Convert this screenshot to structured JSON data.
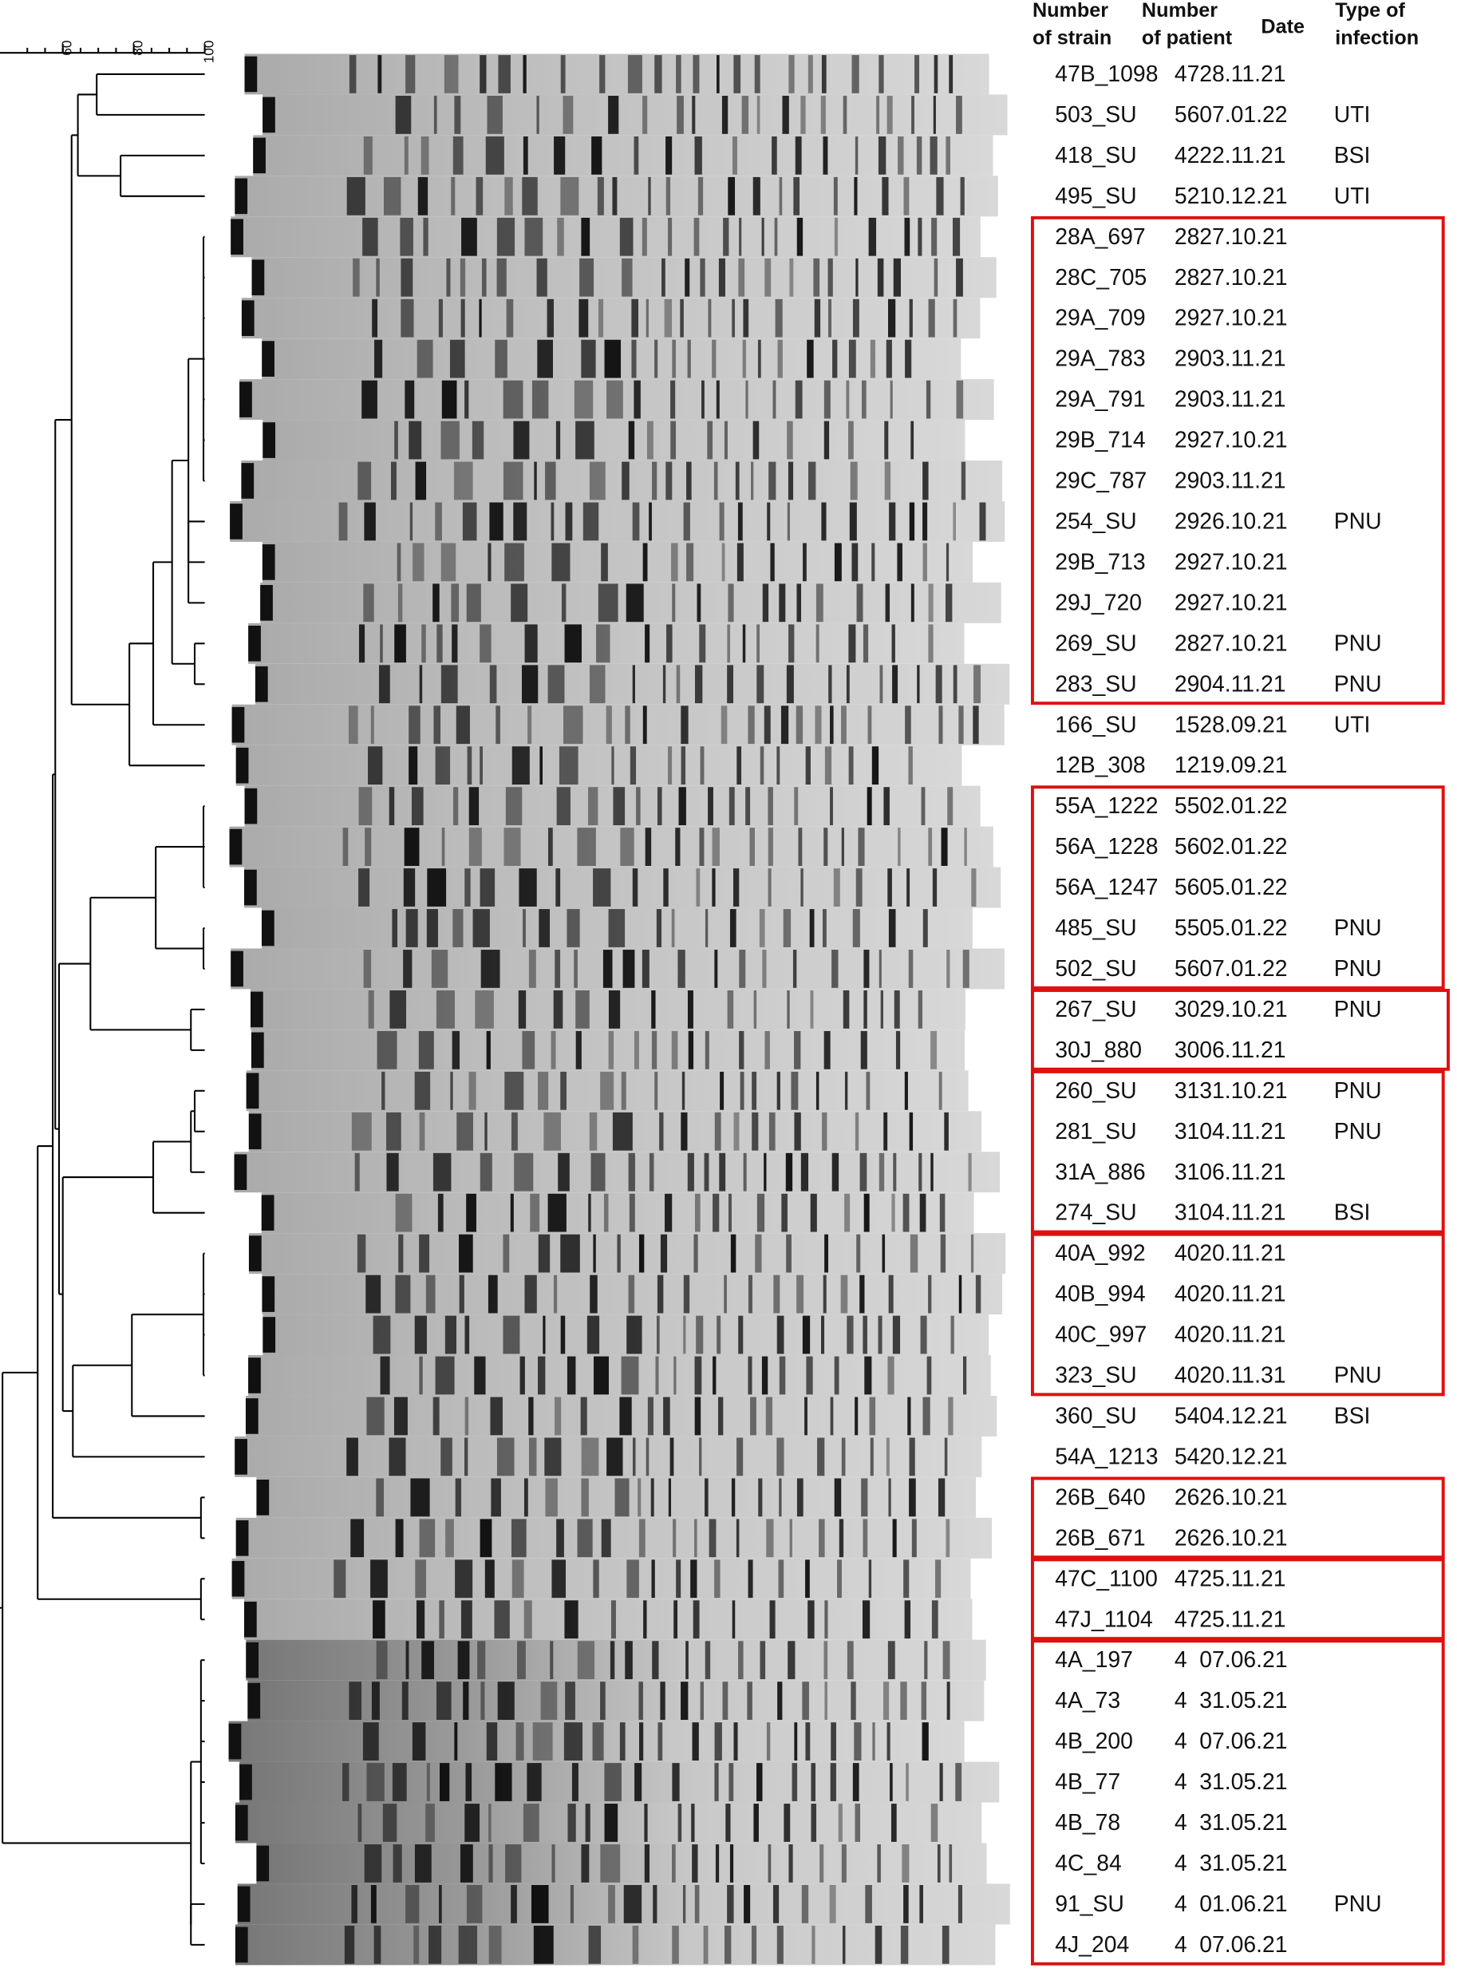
{
  "header": {
    "strain": [
      "Number",
      "of strain"
    ],
    "patient": [
      "Number",
      "of patient"
    ],
    "date": [
      "Date"
    ],
    "infection": [
      "Type of",
      "infection"
    ]
  },
  "scale": {
    "ticks": [
      60,
      80,
      100
    ]
  },
  "rows": [
    {
      "strain": "47B_1098",
      "patient": 47,
      "date": "28.11.21"
    },
    {
      "strain": "503_SU",
      "patient": 56,
      "date": "07.01.22",
      "infection": "UTI"
    },
    {
      "strain": "418_SU",
      "patient": 42,
      "date": "22.11.21",
      "infection": "BSI"
    },
    {
      "strain": "495_SU",
      "patient": 52,
      "date": "10.12.21",
      "infection": "UTI"
    },
    {
      "strain": "28A_697",
      "patient": 28,
      "date": "27.10.21"
    },
    {
      "strain": "28C_705",
      "patient": 28,
      "date": "27.10.21"
    },
    {
      "strain": "29A_709",
      "patient": 29,
      "date": "27.10.21"
    },
    {
      "strain": "29A_783",
      "patient": 29,
      "date": "03.11.21"
    },
    {
      "strain": "29A_791",
      "patient": 29,
      "date": "03.11.21"
    },
    {
      "strain": "29B_714",
      "patient": 29,
      "date": "27.10.21"
    },
    {
      "strain": "29C_787",
      "patient": 29,
      "date": "03.11.21"
    },
    {
      "strain": "254_SU",
      "patient": 29,
      "date": "26.10.21",
      "infection": "PNU"
    },
    {
      "strain": "29B_713",
      "patient": 29,
      "date": "27.10.21"
    },
    {
      "strain": "29J_720",
      "patient": 29,
      "date": "27.10.21"
    },
    {
      "strain": "269_SU",
      "patient": 28,
      "date": "27.10.21",
      "infection": "PNU"
    },
    {
      "strain": "283_SU",
      "patient": 29,
      "date": "04.11.21",
      "infection": "PNU"
    },
    {
      "strain": "166_SU",
      "patient": 15,
      "date": "28.09.21",
      "infection": "UTI"
    },
    {
      "strain": "12B_308",
      "patient": 12,
      "date": "19.09.21"
    },
    {
      "strain": "55A_1222",
      "patient": 55,
      "date": "02.01.22"
    },
    {
      "strain": "56A_1228",
      "patient": 56,
      "date": "02.01.22"
    },
    {
      "strain": "56A_1247",
      "patient": 56,
      "date": "05.01.22"
    },
    {
      "strain": "485_SU",
      "patient": 55,
      "date": "05.01.22",
      "infection": "PNU"
    },
    {
      "strain": "502_SU",
      "patient": 56,
      "date": "07.01.22",
      "infection": "PNU"
    },
    {
      "strain": "267_SU",
      "patient": 30,
      "date": "29.10.21",
      "infection": "PNU"
    },
    {
      "strain": "30J_880",
      "patient": 30,
      "date": "06.11.21"
    },
    {
      "strain": "260_SU",
      "patient": 31,
      "date": "31.10.21",
      "infection": "PNU"
    },
    {
      "strain": "281_SU",
      "patient": 31,
      "date": "04.11.21",
      "infection": "PNU"
    },
    {
      "strain": "31A_886",
      "patient": 31,
      "date": "06.11.21"
    },
    {
      "strain": "274_SU",
      "patient": 31,
      "date": "04.11.21",
      "infection": "BSI"
    },
    {
      "strain": "40A_992",
      "patient": 40,
      "date": "20.11.21"
    },
    {
      "strain": "40B_994",
      "patient": 40,
      "date": "20.11.21"
    },
    {
      "strain": "40C_997",
      "patient": 40,
      "date": "20.11.21"
    },
    {
      "strain": "323_SU",
      "patient": 40,
      "date": "20.11.31",
      "infection": "PNU"
    },
    {
      "strain": "360_SU",
      "patient": 54,
      "date": "04.12.21",
      "infection": "BSI"
    },
    {
      "strain": "54A_1213",
      "patient": 54,
      "date": "20.12.21"
    },
    {
      "strain": "26B_640",
      "patient": 26,
      "date": "26.10.21"
    },
    {
      "strain": "26B_671",
      "patient": 26,
      "date": "26.10.21"
    },
    {
      "strain": "47C_1100",
      "patient": 47,
      "date": "25.11.21"
    },
    {
      "strain": "47J_1104",
      "patient": 47,
      "date": "25.11.21"
    },
    {
      "strain": "4A_197",
      "patient": 4,
      "date": "07.06.21"
    },
    {
      "strain": "4A_73",
      "patient": 4,
      "date": "31.05.21"
    },
    {
      "strain": "4B_200",
      "patient": 4,
      "date": "07.06.21"
    },
    {
      "strain": "4B_77",
      "patient": 4,
      "date": "31.05.21"
    },
    {
      "strain": "4B_78",
      "patient": 4,
      "date": "31.05.21"
    },
    {
      "strain": "4C_84",
      "patient": 4,
      "date": "31.05.21"
    },
    {
      "strain": "91_SU",
      "patient": 4,
      "date": "01.06.21",
      "infection": "PNU"
    },
    {
      "strain": "4J_204",
      "patient": 4,
      "date": "07.06.21"
    }
  ]
}
